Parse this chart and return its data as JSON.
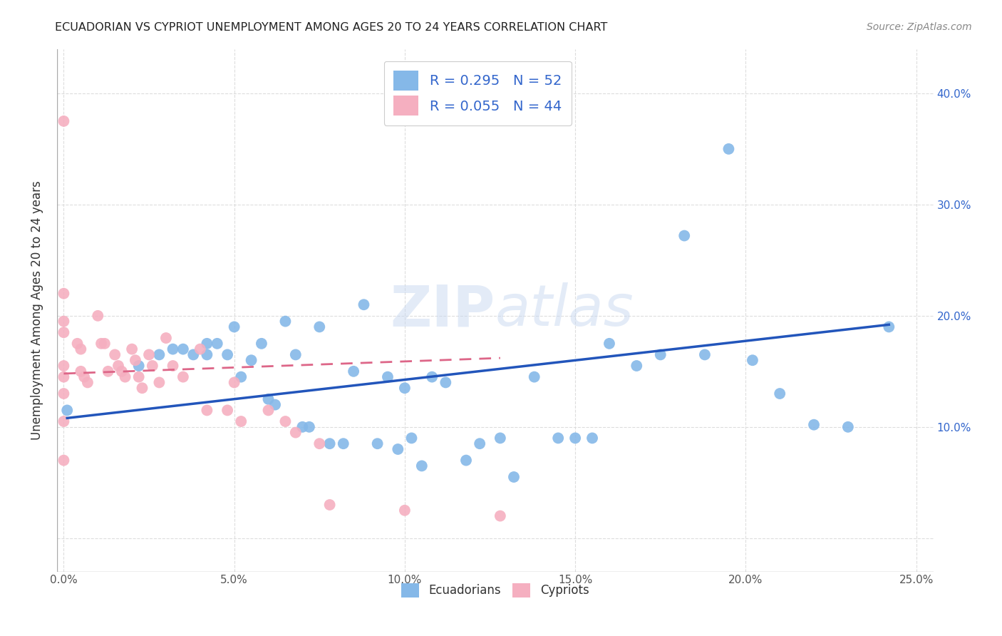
{
  "title": "ECUADORIAN VS CYPRIOT UNEMPLOYMENT AMONG AGES 20 TO 24 YEARS CORRELATION CHART",
  "source": "Source: ZipAtlas.com",
  "ylabel": "Unemployment Among Ages 20 to 24 years",
  "xlim": [
    -0.002,
    0.255
  ],
  "ylim": [
    -0.03,
    0.44
  ],
  "x_ticks": [
    0.0,
    0.05,
    0.1,
    0.15,
    0.2,
    0.25
  ],
  "y_ticks": [
    0.0,
    0.1,
    0.2,
    0.3,
    0.4
  ],
  "x_tick_labels": [
    "0.0%",
    "5.0%",
    "10.0%",
    "15.0%",
    "20.0%",
    "25.0%"
  ],
  "legend_label1": "R = 0.295   N = 52",
  "legend_label2": "R = 0.055   N = 44",
  "legend_labels_bottom": [
    "Ecuadorians",
    "Cypriots"
  ],
  "ecuadorians_color": "#85b8e8",
  "cypriots_color": "#f5afc0",
  "trendline_ecu_color": "#2255bb",
  "trendline_cyp_color": "#dd6688",
  "watermark_color": "#d0dff0",
  "background_color": "#ffffff",
  "grid_color": "#dddddd",
  "ecuadorians_x": [
    0.001,
    0.022,
    0.028,
    0.032,
    0.035,
    0.038,
    0.042,
    0.042,
    0.045,
    0.048,
    0.05,
    0.052,
    0.055,
    0.058,
    0.06,
    0.062,
    0.065,
    0.068,
    0.07,
    0.072,
    0.075,
    0.078,
    0.082,
    0.085,
    0.088,
    0.092,
    0.095,
    0.098,
    0.1,
    0.102,
    0.105,
    0.108,
    0.112,
    0.118,
    0.122,
    0.128,
    0.132,
    0.138,
    0.145,
    0.15,
    0.155,
    0.16,
    0.168,
    0.175,
    0.182,
    0.188,
    0.195,
    0.202,
    0.21,
    0.22,
    0.23,
    0.242
  ],
  "ecuadorians_y": [
    0.115,
    0.155,
    0.165,
    0.17,
    0.17,
    0.165,
    0.175,
    0.165,
    0.175,
    0.165,
    0.19,
    0.145,
    0.16,
    0.175,
    0.125,
    0.12,
    0.195,
    0.165,
    0.1,
    0.1,
    0.19,
    0.085,
    0.085,
    0.15,
    0.21,
    0.085,
    0.145,
    0.08,
    0.135,
    0.09,
    0.065,
    0.145,
    0.14,
    0.07,
    0.085,
    0.09,
    0.055,
    0.145,
    0.09,
    0.09,
    0.09,
    0.175,
    0.155,
    0.165,
    0.272,
    0.165,
    0.35,
    0.16,
    0.13,
    0.102,
    0.1,
    0.19
  ],
  "cypriots_x": [
    0.0,
    0.0,
    0.0,
    0.0,
    0.0,
    0.0,
    0.0,
    0.0,
    0.0,
    0.004,
    0.005,
    0.005,
    0.006,
    0.007,
    0.01,
    0.011,
    0.012,
    0.013,
    0.015,
    0.016,
    0.017,
    0.018,
    0.02,
    0.021,
    0.022,
    0.023,
    0.025,
    0.026,
    0.028,
    0.03,
    0.032,
    0.035,
    0.04,
    0.042,
    0.048,
    0.05,
    0.052,
    0.06,
    0.065,
    0.068,
    0.075,
    0.078,
    0.1,
    0.128
  ],
  "cypriots_y": [
    0.375,
    0.22,
    0.195,
    0.185,
    0.155,
    0.145,
    0.13,
    0.105,
    0.07,
    0.175,
    0.17,
    0.15,
    0.145,
    0.14,
    0.2,
    0.175,
    0.175,
    0.15,
    0.165,
    0.155,
    0.15,
    0.145,
    0.17,
    0.16,
    0.145,
    0.135,
    0.165,
    0.155,
    0.14,
    0.18,
    0.155,
    0.145,
    0.17,
    0.115,
    0.115,
    0.14,
    0.105,
    0.115,
    0.105,
    0.095,
    0.085,
    0.03,
    0.025,
    0.02
  ],
  "ecu_trendline_x": [
    0.001,
    0.242
  ],
  "ecu_trendline_y": [
    0.108,
    0.192
  ],
  "cyp_trendline_x": [
    0.0,
    0.128
  ],
  "cyp_trendline_y": [
    0.148,
    0.162
  ]
}
